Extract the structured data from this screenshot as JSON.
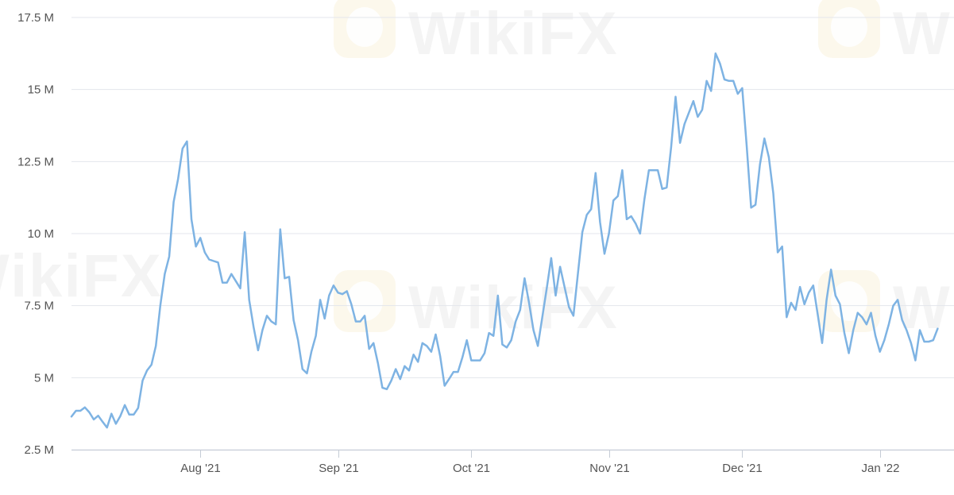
{
  "watermark": {
    "text": "WikiFX",
    "icon": "wikifx-logo-icon"
  },
  "colors": {
    "line": "#7eb3e3",
    "grid": "#e3e6ec",
    "axis": "#c5ccd6",
    "label": "#555555"
  },
  "chart_data": {
    "type": "line",
    "title": "",
    "xlabel": "",
    "ylabel": "",
    "ylim": [
      2.5,
      17.5
    ],
    "y_unit": "M",
    "yticks": [
      {
        "value": 2.5,
        "label": "2.5 M"
      },
      {
        "value": 5,
        "label": "5 M"
      },
      {
        "value": 7.5,
        "label": "7.5 M"
      },
      {
        "value": 10,
        "label": "10 M"
      },
      {
        "value": 12.5,
        "label": "12.5 M"
      },
      {
        "value": 15,
        "label": "15 M"
      },
      {
        "value": 17.5,
        "label": "17.5 M"
      }
    ],
    "xlim": [
      "2021-07-03",
      "2022-01-15"
    ],
    "xticks": [
      {
        "date": "2021-08-01",
        "label": "Aug '21"
      },
      {
        "date": "2021-09-01",
        "label": "Sep '21"
      },
      {
        "date": "2021-10-01",
        "label": "Oct '21"
      },
      {
        "date": "2021-11-01",
        "label": "Nov '21"
      },
      {
        "date": "2021-12-01",
        "label": "Dec '21"
      },
      {
        "date": "2022-01-01",
        "label": "Jan '22"
      }
    ],
    "grid": true,
    "legend": "none",
    "series": [
      {
        "values": [
          [
            "2021-07-03",
            3.65
          ],
          [
            "2021-07-04",
            3.85
          ],
          [
            "2021-07-05",
            3.85
          ],
          [
            "2021-07-06",
            3.97
          ],
          [
            "2021-07-07",
            3.8
          ],
          [
            "2021-07-08",
            3.55
          ],
          [
            "2021-07-09",
            3.68
          ],
          [
            "2021-07-10",
            3.47
          ],
          [
            "2021-07-11",
            3.27
          ],
          [
            "2021-07-12",
            3.75
          ],
          [
            "2021-07-13",
            3.4
          ],
          [
            "2021-07-14",
            3.67
          ],
          [
            "2021-07-15",
            4.05
          ],
          [
            "2021-07-16",
            3.72
          ],
          [
            "2021-07-17",
            3.72
          ],
          [
            "2021-07-18",
            3.95
          ],
          [
            "2021-07-19",
            4.9
          ],
          [
            "2021-07-20",
            5.25
          ],
          [
            "2021-07-21",
            5.45
          ],
          [
            "2021-07-22",
            6.1
          ],
          [
            "2021-07-23",
            7.5
          ],
          [
            "2021-07-24",
            8.6
          ],
          [
            "2021-07-25",
            9.2
          ],
          [
            "2021-07-26",
            11.1
          ],
          [
            "2021-07-27",
            11.9
          ],
          [
            "2021-07-28",
            12.95
          ],
          [
            "2021-07-29",
            13.2
          ],
          [
            "2021-07-30",
            10.5
          ],
          [
            "2021-07-31",
            9.55
          ],
          [
            "2021-08-01",
            9.85
          ],
          [
            "2021-08-02",
            9.35
          ],
          [
            "2021-08-03",
            9.1
          ],
          [
            "2021-08-04",
            9.05
          ],
          [
            "2021-08-05",
            9.0
          ],
          [
            "2021-08-06",
            8.3
          ],
          [
            "2021-08-07",
            8.3
          ],
          [
            "2021-08-08",
            8.6
          ],
          [
            "2021-08-09",
            8.35
          ],
          [
            "2021-08-10",
            8.1
          ],
          [
            "2021-08-11",
            10.05
          ],
          [
            "2021-08-12",
            7.7
          ],
          [
            "2021-08-13",
            6.75
          ],
          [
            "2021-08-14",
            5.95
          ],
          [
            "2021-08-15",
            6.65
          ],
          [
            "2021-08-16",
            7.15
          ],
          [
            "2021-08-17",
            6.95
          ],
          [
            "2021-08-18",
            6.85
          ],
          [
            "2021-08-19",
            10.15
          ],
          [
            "2021-08-20",
            8.45
          ],
          [
            "2021-08-21",
            8.5
          ],
          [
            "2021-08-22",
            7.0
          ],
          [
            "2021-08-23",
            6.3
          ],
          [
            "2021-08-24",
            5.3
          ],
          [
            "2021-08-25",
            5.15
          ],
          [
            "2021-08-26",
            5.9
          ],
          [
            "2021-08-27",
            6.45
          ],
          [
            "2021-08-28",
            7.7
          ],
          [
            "2021-08-29",
            7.05
          ],
          [
            "2021-08-30",
            7.85
          ],
          [
            "2021-08-31",
            8.2
          ],
          [
            "2021-09-01",
            7.95
          ],
          [
            "2021-09-02",
            7.9
          ],
          [
            "2021-09-03",
            8.0
          ],
          [
            "2021-09-04",
            7.55
          ],
          [
            "2021-09-05",
            6.95
          ],
          [
            "2021-09-06",
            6.95
          ],
          [
            "2021-09-07",
            7.15
          ],
          [
            "2021-09-08",
            6.0
          ],
          [
            "2021-09-09",
            6.2
          ],
          [
            "2021-09-10",
            5.5
          ],
          [
            "2021-09-11",
            4.65
          ],
          [
            "2021-09-12",
            4.6
          ],
          [
            "2021-09-13",
            4.9
          ],
          [
            "2021-09-14",
            5.3
          ],
          [
            "2021-09-15",
            4.95
          ],
          [
            "2021-09-16",
            5.4
          ],
          [
            "2021-09-17",
            5.25
          ],
          [
            "2021-09-18",
            5.8
          ],
          [
            "2021-09-19",
            5.55
          ],
          [
            "2021-09-20",
            6.2
          ],
          [
            "2021-09-21",
            6.1
          ],
          [
            "2021-09-22",
            5.9
          ],
          [
            "2021-09-23",
            6.5
          ],
          [
            "2021-09-24",
            5.75
          ],
          [
            "2021-09-25",
            4.72
          ],
          [
            "2021-09-26",
            4.95
          ],
          [
            "2021-09-27",
            5.2
          ],
          [
            "2021-09-28",
            5.2
          ],
          [
            "2021-09-29",
            5.7
          ],
          [
            "2021-09-30",
            6.3
          ],
          [
            "2021-10-01",
            5.6
          ],
          [
            "2021-10-02",
            5.6
          ],
          [
            "2021-10-03",
            5.6
          ],
          [
            "2021-10-04",
            5.85
          ],
          [
            "2021-10-05",
            6.55
          ],
          [
            "2021-10-06",
            6.45
          ],
          [
            "2021-10-07",
            7.85
          ],
          [
            "2021-10-08",
            6.15
          ],
          [
            "2021-10-09",
            6.05
          ],
          [
            "2021-10-10",
            6.3
          ],
          [
            "2021-10-11",
            6.95
          ],
          [
            "2021-10-12",
            7.35
          ],
          [
            "2021-10-13",
            8.45
          ],
          [
            "2021-10-14",
            7.6
          ],
          [
            "2021-10-15",
            6.65
          ],
          [
            "2021-10-16",
            6.1
          ],
          [
            "2021-10-17",
            7.1
          ],
          [
            "2021-10-18",
            8.1
          ],
          [
            "2021-10-19",
            9.15
          ],
          [
            "2021-10-20",
            7.85
          ],
          [
            "2021-10-21",
            8.85
          ],
          [
            "2021-10-22",
            8.15
          ],
          [
            "2021-10-23",
            7.45
          ],
          [
            "2021-10-24",
            7.15
          ],
          [
            "2021-10-25",
            8.6
          ],
          [
            "2021-10-26",
            10.05
          ],
          [
            "2021-10-27",
            10.65
          ],
          [
            "2021-10-28",
            10.85
          ],
          [
            "2021-10-29",
            12.1
          ],
          [
            "2021-10-30",
            10.4
          ],
          [
            "2021-10-31",
            9.3
          ],
          [
            "2021-11-01",
            10.0
          ],
          [
            "2021-11-02",
            11.15
          ],
          [
            "2021-11-03",
            11.3
          ],
          [
            "2021-11-04",
            12.2
          ],
          [
            "2021-11-05",
            10.5
          ],
          [
            "2021-11-06",
            10.6
          ],
          [
            "2021-11-07",
            10.35
          ],
          [
            "2021-11-08",
            10.0
          ],
          [
            "2021-11-09",
            11.2
          ],
          [
            "2021-11-10",
            12.2
          ],
          [
            "2021-11-11",
            12.2
          ],
          [
            "2021-11-12",
            12.2
          ],
          [
            "2021-11-13",
            11.55
          ],
          [
            "2021-11-14",
            11.6
          ],
          [
            "2021-11-15",
            13.0
          ],
          [
            "2021-11-16",
            14.75
          ],
          [
            "2021-11-17",
            13.15
          ],
          [
            "2021-11-18",
            13.8
          ],
          [
            "2021-11-19",
            14.2
          ],
          [
            "2021-11-20",
            14.6
          ],
          [
            "2021-11-21",
            14.05
          ],
          [
            "2021-11-22",
            14.3
          ],
          [
            "2021-11-23",
            15.3
          ],
          [
            "2021-11-24",
            14.95
          ],
          [
            "2021-11-25",
            16.25
          ],
          [
            "2021-11-26",
            15.9
          ],
          [
            "2021-11-27",
            15.35
          ],
          [
            "2021-11-28",
            15.3
          ],
          [
            "2021-11-29",
            15.3
          ],
          [
            "2021-11-30",
            14.85
          ],
          [
            "2021-12-01",
            15.05
          ],
          [
            "2021-12-02",
            13.05
          ],
          [
            "2021-12-03",
            10.9
          ],
          [
            "2021-12-04",
            11.0
          ],
          [
            "2021-12-05",
            12.4
          ],
          [
            "2021-12-06",
            13.3
          ],
          [
            "2021-12-07",
            12.65
          ],
          [
            "2021-12-08",
            11.4
          ],
          [
            "2021-12-09",
            9.35
          ],
          [
            "2021-12-10",
            9.55
          ],
          [
            "2021-12-11",
            7.1
          ],
          [
            "2021-12-12",
            7.6
          ],
          [
            "2021-12-13",
            7.35
          ],
          [
            "2021-12-14",
            8.15
          ],
          [
            "2021-12-15",
            7.55
          ],
          [
            "2021-12-16",
            7.95
          ],
          [
            "2021-12-17",
            8.2
          ],
          [
            "2021-12-18",
            7.2
          ],
          [
            "2021-12-19",
            6.2
          ],
          [
            "2021-12-20",
            7.7
          ],
          [
            "2021-12-21",
            8.75
          ],
          [
            "2021-12-22",
            7.85
          ],
          [
            "2021-12-23",
            7.55
          ],
          [
            "2021-12-24",
            6.55
          ],
          [
            "2021-12-25",
            5.85
          ],
          [
            "2021-12-26",
            6.65
          ],
          [
            "2021-12-27",
            7.25
          ],
          [
            "2021-12-28",
            7.1
          ],
          [
            "2021-12-29",
            6.85
          ],
          [
            "2021-12-30",
            7.25
          ],
          [
            "2021-12-31",
            6.45
          ],
          [
            "2022-01-01",
            5.9
          ],
          [
            "2022-01-02",
            6.3
          ],
          [
            "2022-01-03",
            6.85
          ],
          [
            "2022-01-04",
            7.5
          ],
          [
            "2022-01-05",
            7.7
          ],
          [
            "2022-01-06",
            7.0
          ],
          [
            "2022-01-07",
            6.65
          ],
          [
            "2022-01-08",
            6.2
          ],
          [
            "2022-01-09",
            5.6
          ],
          [
            "2022-01-10",
            6.65
          ],
          [
            "2022-01-11",
            6.25
          ],
          [
            "2022-01-12",
            6.25
          ],
          [
            "2022-01-13",
            6.3
          ],
          [
            "2022-01-14",
            6.7
          ]
        ]
      }
    ]
  }
}
